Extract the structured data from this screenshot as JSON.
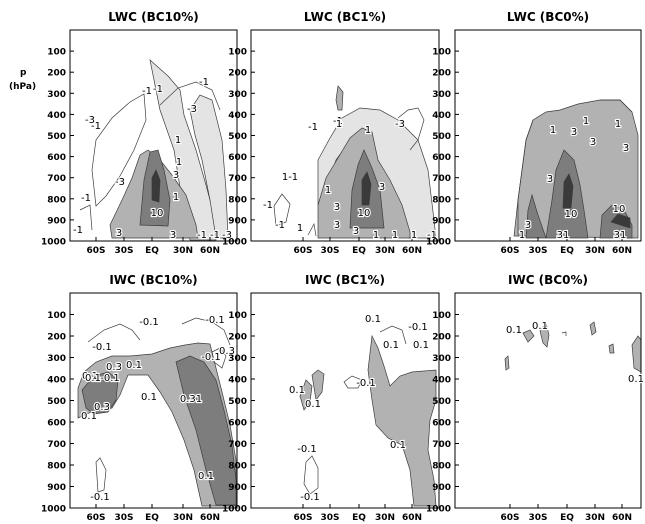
{
  "figure": {
    "ylabel": "p",
    "yunit": "(hPa)"
  },
  "colors": {
    "light": "#e4e4e4",
    "medium": "#b2b2b2",
    "dark": "#7d7d7d",
    "darkest": "#3a3a3a",
    "contour": "#3c3c3c",
    "frame": "#000000"
  },
  "chart_data": [
    {
      "type": "contour",
      "title": "LWC (BC10%)",
      "x_ticks": [
        "60S",
        "30S",
        "EQ",
        "30N",
        "60N"
      ],
      "y_ticks": [
        100,
        200,
        300,
        400,
        500,
        600,
        700,
        800,
        900,
        1000
      ],
      "ylim": [
        1000,
        0
      ],
      "contour_levels": [
        -3,
        -1,
        1,
        3,
        10
      ],
      "labels": [
        "-1",
        "-1",
        "-1",
        "-1",
        "-3",
        "-3",
        "-3",
        "-1",
        "-1",
        "1",
        "1",
        "3",
        "1",
        "10",
        "3",
        "3",
        "-1",
        "-1",
        "-3"
      ]
    },
    {
      "type": "contour",
      "title": "LWC (BC1%)",
      "x_ticks": [
        "60S",
        "30S",
        "EQ",
        "30N",
        "60N"
      ],
      "y_ticks": [
        100,
        200,
        300,
        400,
        500,
        600,
        700,
        800,
        900,
        1000
      ],
      "ylim": [
        1000,
        0
      ],
      "contour_levels": [
        -3,
        -1,
        1,
        3,
        10
      ],
      "labels": [
        "-1",
        "-1",
        "1",
        "-3",
        "1",
        "-1",
        "1-1",
        "1",
        "3",
        "-1",
        "1",
        "3",
        "10",
        "3",
        "3",
        "1",
        "1",
        "1",
        "-1"
      ]
    },
    {
      "type": "contour",
      "title": "LWC (BC0%)",
      "x_ticks": [
        "60S",
        "30S",
        "EQ",
        "30N",
        "60N"
      ],
      "y_ticks": [
        100,
        200,
        300,
        400,
        500,
        600,
        700,
        800,
        900,
        1000
      ],
      "ylim": [
        1000,
        0
      ],
      "contour_levels": [
        1,
        3,
        10
      ],
      "labels": [
        "1",
        "1",
        "3",
        "1",
        "3",
        "3",
        "3",
        "3",
        "10",
        "10",
        "1",
        "31",
        "31"
      ]
    },
    {
      "type": "contour",
      "title": "IWC (BC10%)",
      "x_ticks": [
        "60S",
        "30S",
        "EQ",
        "30N",
        "60N"
      ],
      "y_ticks": [
        100,
        200,
        300,
        400,
        500,
        600,
        700,
        800,
        900,
        1000
      ],
      "ylim": [
        1000,
        0
      ],
      "contour_levels": [
        -0.1,
        0.1,
        0.3
      ],
      "labels": [
        "-0.1",
        "-0.1",
        "-0.1",
        "-0.1",
        "0.1",
        "0.3",
        "0.1",
        "0.1",
        "0.1",
        "-0.1",
        "0.3",
        "0.31",
        "0.3",
        "0.1",
        "0.1",
        "-0.1"
      ]
    },
    {
      "type": "contour",
      "title": "IWC (BC1%)",
      "x_ticks": [
        "60S",
        "30S",
        "EQ",
        "30N",
        "60N"
      ],
      "y_ticks": [
        100,
        200,
        300,
        400,
        500,
        600,
        700,
        800,
        900,
        1000
      ],
      "ylim": [
        1000,
        0
      ],
      "contour_levels": [
        -0.1,
        0.1
      ],
      "labels": [
        "0.1",
        "-0.1",
        "0.1",
        "0.1",
        "-0.1",
        "0.1",
        "0.1",
        "0.1",
        "-0.1",
        "-0.1"
      ]
    },
    {
      "type": "contour",
      "title": "IWC (BC0%)",
      "x_ticks": [
        "60S",
        "30S",
        "EQ",
        "30N",
        "60N"
      ],
      "y_ticks": [
        100,
        200,
        300,
        400,
        500,
        600,
        700,
        800,
        900,
        1000
      ],
      "ylim": [
        1000,
        0
      ],
      "contour_levels": [
        0.1
      ],
      "labels": [
        "0.1",
        "0.1",
        "0.1"
      ]
    }
  ]
}
